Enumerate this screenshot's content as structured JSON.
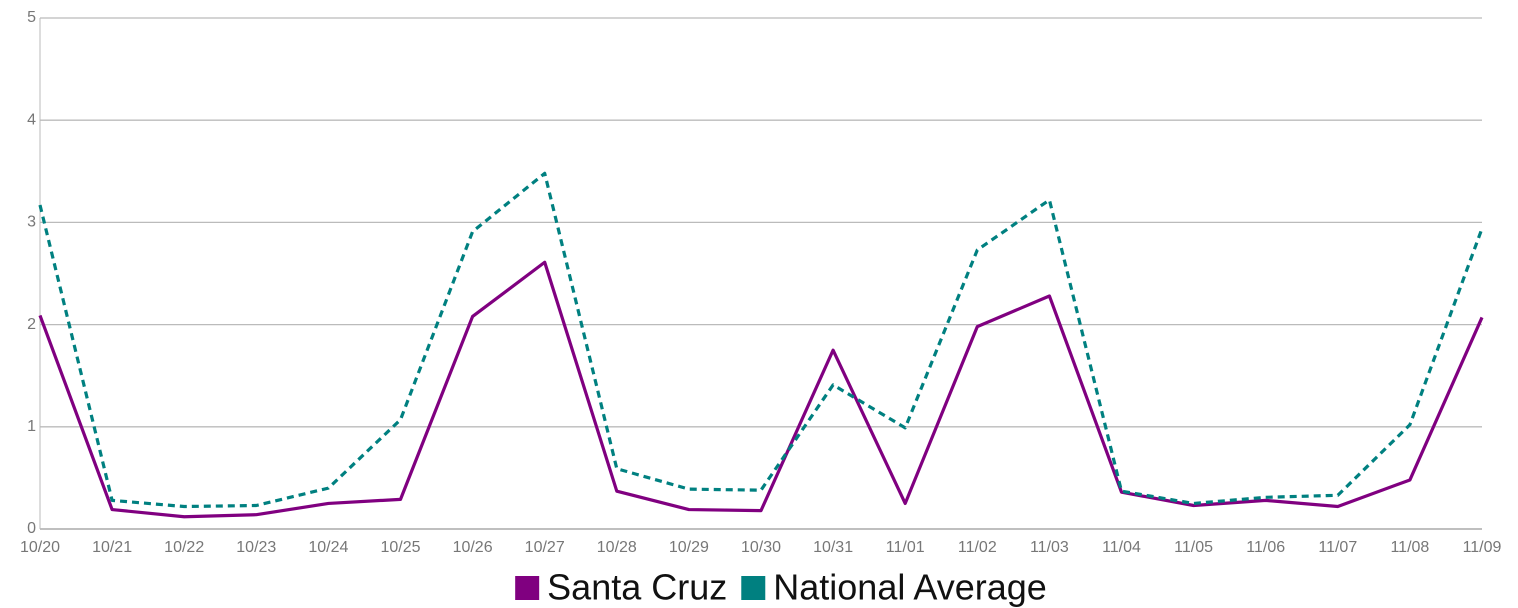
{
  "chart_data": {
    "type": "line",
    "categories": [
      "10/20",
      "10/21",
      "10/22",
      "10/23",
      "10/24",
      "10/25",
      "10/26",
      "10/27",
      "10/28",
      "10/29",
      "10/30",
      "10/31",
      "11/01",
      "11/02",
      "11/03",
      "11/04",
      "11/05",
      "11/06",
      "11/07",
      "11/08",
      "11/09"
    ],
    "series": [
      {
        "name": "Santa Cruz",
        "color": "#800080",
        "dashed": false,
        "values": [
          2.09,
          0.19,
          0.12,
          0.14,
          0.25,
          0.29,
          2.08,
          2.61,
          0.37,
          0.19,
          0.18,
          1.75,
          0.25,
          1.98,
          2.28,
          0.36,
          0.23,
          0.28,
          0.22,
          0.48,
          2.07
        ]
      },
      {
        "name": "National Average",
        "color": "#008080",
        "dashed": true,
        "values": [
          3.17,
          0.28,
          0.22,
          0.23,
          0.4,
          1.07,
          2.91,
          3.48,
          0.59,
          0.39,
          0.38,
          1.41,
          0.99,
          2.73,
          3.22,
          0.37,
          0.25,
          0.31,
          0.33,
          1.02,
          2.94
        ]
      }
    ],
    "ylim": [
      0,
      5
    ],
    "yticks": [
      0,
      1,
      2,
      3,
      4,
      5
    ],
    "grid": true,
    "legend": "bottom"
  }
}
